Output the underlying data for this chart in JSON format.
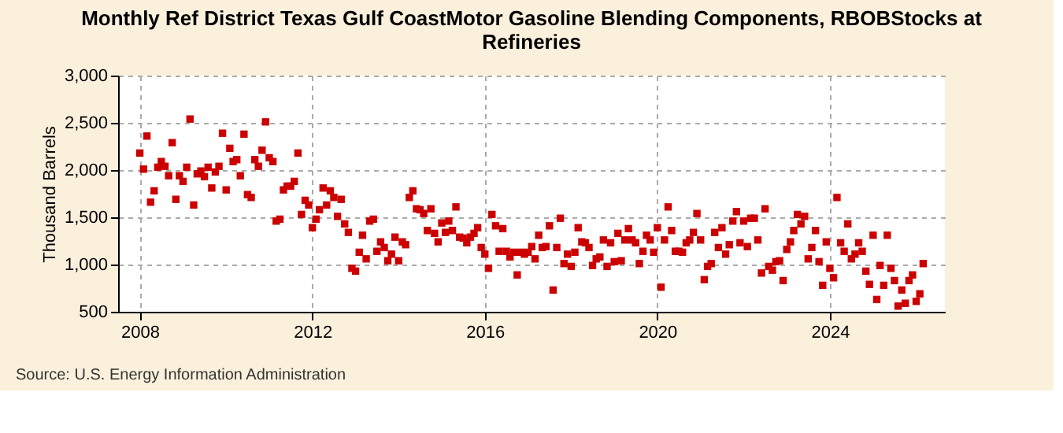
{
  "chart_data": {
    "type": "scatter",
    "title": "Monthly Ref District Texas Gulf CoastMotor Gasoline Blending Components, RBOBStocks at Refineries",
    "ylabel": "Thousand Barrels",
    "annotations": [
      "Source: U.S. Energy Information Administration"
    ],
    "xlim": [
      "2007-07",
      "2026-09"
    ],
    "xticks": [
      "2008",
      "2012",
      "2016",
      "2020",
      "2024"
    ],
    "ylim": [
      500,
      3000
    ],
    "yticks": [
      500,
      {
        "value": 1000,
        "label": "1,000"
      },
      {
        "value": 1500,
        "label": "1,500"
      },
      {
        "value": 2000,
        "label": "2,000"
      },
      {
        "value": 2500,
        "label": "2,500"
      },
      {
        "value": 3000,
        "label": "3,000"
      }
    ],
    "grid": true,
    "marker": "square",
    "series": [
      {
        "color": "#cc0000",
        "x": [
          "2008-01",
          "2008-02",
          "2008-03",
          "2008-04",
          "2008-05",
          "2008-06",
          "2008-07",
          "2008-08",
          "2008-09",
          "2008-10",
          "2008-11",
          "2008-12",
          "2009-01",
          "2009-02",
          "2009-03",
          "2009-04",
          "2009-05",
          "2009-06",
          "2009-07",
          "2009-08",
          "2009-09",
          "2009-10",
          "2009-11",
          "2009-12",
          "2010-01",
          "2010-02",
          "2010-03",
          "2010-04",
          "2010-05",
          "2010-06",
          "2010-07",
          "2010-08",
          "2010-09",
          "2010-10",
          "2010-11",
          "2010-12",
          "2011-01",
          "2011-02",
          "2011-03",
          "2011-04",
          "2011-05",
          "2011-06",
          "2011-07",
          "2011-08",
          "2011-09",
          "2011-10",
          "2011-11",
          "2011-12",
          "2012-01",
          "2012-02",
          "2012-03",
          "2012-04",
          "2012-05",
          "2012-06",
          "2012-07",
          "2012-08",
          "2012-09",
          "2012-10",
          "2012-11",
          "2012-12",
          "2013-01",
          "2013-02",
          "2013-03",
          "2013-04",
          "2013-05",
          "2013-06",
          "2013-07",
          "2013-08",
          "2013-09",
          "2013-10",
          "2013-11",
          "2013-12",
          "2014-01",
          "2014-02",
          "2014-03",
          "2014-04",
          "2014-05",
          "2014-06",
          "2014-07",
          "2014-08",
          "2014-09",
          "2014-10",
          "2014-11",
          "2014-12",
          "2015-01",
          "2015-02",
          "2015-03",
          "2015-04",
          "2015-05",
          "2015-06",
          "2015-07",
          "2015-08",
          "2015-09",
          "2015-10",
          "2015-11",
          "2015-12",
          "2016-01",
          "2016-02",
          "2016-03",
          "2016-04",
          "2016-05",
          "2016-06",
          "2016-07",
          "2016-08",
          "2016-09",
          "2016-10",
          "2016-11",
          "2016-12",
          "2017-01",
          "2017-02",
          "2017-03",
          "2017-04",
          "2017-05",
          "2017-06",
          "2017-07",
          "2017-08",
          "2017-09",
          "2017-10",
          "2017-11",
          "2017-12",
          "2018-01",
          "2018-02",
          "2018-03",
          "2018-04",
          "2018-05",
          "2018-06",
          "2018-07",
          "2018-08",
          "2018-09",
          "2018-10",
          "2018-11",
          "2018-12",
          "2019-01",
          "2019-02",
          "2019-03",
          "2019-04",
          "2019-05",
          "2019-06",
          "2019-07",
          "2019-08",
          "2019-09",
          "2019-10",
          "2019-11",
          "2019-12",
          "2020-01",
          "2020-02",
          "2020-03",
          "2020-04",
          "2020-05",
          "2020-06",
          "2020-07",
          "2020-08",
          "2020-09",
          "2020-10",
          "2020-11",
          "2020-12",
          "2021-01",
          "2021-02",
          "2021-03",
          "2021-04",
          "2021-05",
          "2021-06",
          "2021-07",
          "2021-08",
          "2021-09",
          "2021-10",
          "2021-11",
          "2021-12",
          "2022-01",
          "2022-02",
          "2022-03",
          "2022-04",
          "2022-05",
          "2022-06",
          "2022-07",
          "2022-08",
          "2022-09",
          "2022-10",
          "2022-11",
          "2022-12",
          "2023-01",
          "2023-02",
          "2023-03",
          "2023-04",
          "2023-05",
          "2023-06",
          "2023-07",
          "2023-08",
          "2023-09",
          "2023-10",
          "2023-11",
          "2023-12",
          "2024-01",
          "2024-02",
          "2024-03",
          "2024-04",
          "2024-05",
          "2024-06",
          "2024-07",
          "2024-08",
          "2024-09",
          "2024-10",
          "2024-11",
          "2024-12",
          "2025-01",
          "2025-02",
          "2025-03",
          "2025-04",
          "2025-05",
          "2025-06",
          "2025-07",
          "2025-08",
          "2025-09",
          "2025-10",
          "2025-11",
          "2025-12",
          "2026-01",
          "2026-02",
          "2026-03"
        ],
        "values": [
          2180,
          2010,
          2360,
          1660,
          1780,
          2030,
          2090,
          2040,
          1940,
          2290,
          1690,
          1940,
          1880,
          2030,
          2540,
          1630,
          1960,
          1990,
          1930,
          2030,
          1810,
          1980,
          2040,
          2390,
          1790,
          2230,
          2090,
          2110,
          1940,
          2380,
          1740,
          1710,
          2110,
          2040,
          2210,
          2510,
          2130,
          2090,
          1460,
          1480,
          1790,
          1830,
          1830,
          1880,
          2180,
          1530,
          1680,
          1630,
          1390,
          1480,
          1580,
          1810,
          1630,
          1780,
          1710,
          1510,
          1690,
          1430,
          1340,
          960,
          930,
          1130,
          1310,
          1060,
          1460,
          1480,
          1140,
          1240,
          1180,
          1040,
          1110,
          1290,
          1040,
          1240,
          1210,
          1710,
          1780,
          1590,
          1580,
          1540,
          1360,
          1590,
          1330,
          1240,
          1440,
          1340,
          1460,
          1360,
          1610,
          1290,
          1280,
          1230,
          1290,
          1330,
          1390,
          1180,
          1110,
          960,
          1530,
          1410,
          1140,
          1380,
          1140,
          1080,
          1130,
          890,
          1130,
          1110,
          1130,
          1190,
          1060,
          1310,
          1180,
          1190,
          1410,
          730,
          1180,
          1490,
          1010,
          1110,
          980,
          1130,
          1390,
          1240,
          1230,
          1180,
          990,
          1060,
          1080,
          1260,
          980,
          1230,
          1030,
          1330,
          1040,
          1260,
          1380,
          1260,
          1230,
          1010,
          1140,
          1310,
          1260,
          1130,
          1390,
          760,
          1260,
          1610,
          1360,
          1140,
          1140,
          1130,
          1230,
          1260,
          1340,
          1540,
          1260,
          840,
          980,
          1010,
          1340,
          1180,
          1390,
          1110,
          1210,
          1460,
          1560,
          1230,
          1460,
          1190,
          1490,
          1490,
          1260,
          910,
          1590,
          980,
          940,
          1030,
          1040,
          830,
          1160,
          1240,
          1360,
          1530,
          1430,
          1510,
          1060,
          1180,
          1360,
          1030,
          780,
          1240,
          960,
          860,
          1710,
          1230,
          1140,
          1430,
          1060,
          1110,
          1230,
          1140,
          930,
          790,
          1310,
          630,
          990,
          780,
          1310,
          960,
          830,
          560,
          730,
          590,
          830,
          890,
          610,
          690,
          1010
        ]
      }
    ]
  }
}
